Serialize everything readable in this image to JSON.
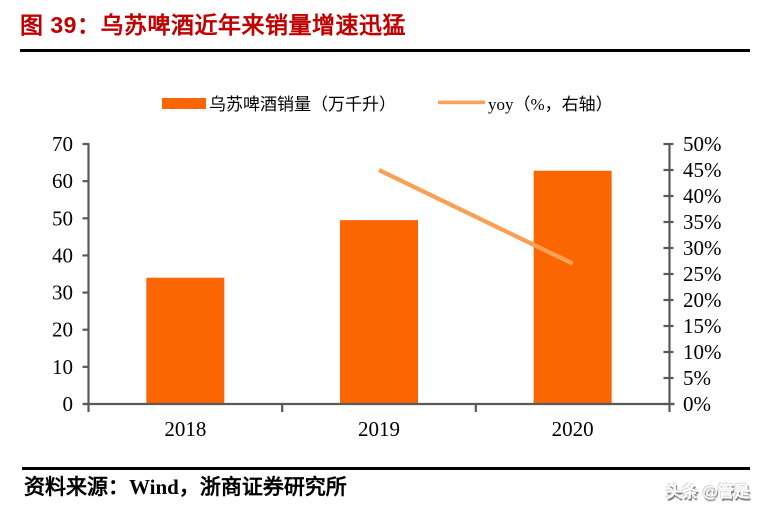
{
  "page": {
    "title": "图 39：乌苏啤酒近年来销量增速迅猛",
    "source": "资料来源：Wind，浙商证券研究所",
    "watermark": "头条 @管是"
  },
  "chart_data": {
    "type": "bar",
    "title": "图 39：乌苏啤酒近年来销量增速迅猛",
    "categories": [
      "2018",
      "2019",
      "2020"
    ],
    "series": [
      {
        "name": "乌苏啤酒销量（万千升）",
        "type": "bar",
        "axis": "left",
        "color": "#FB6602",
        "values": [
          34,
          49.5,
          62.8
        ]
      },
      {
        "name": "yoy（%，右轴）",
        "type": "line",
        "axis": "right",
        "color": "#F9A057",
        "values": [
          null,
          45,
          27
        ]
      }
    ],
    "left_axis": {
      "min": 0,
      "max": 70,
      "step": 10,
      "tick_labels": [
        "0",
        "10",
        "20",
        "30",
        "40",
        "50",
        "60",
        "70"
      ]
    },
    "right_axis": {
      "min": 0,
      "max": 50,
      "step": 5,
      "tick_labels": [
        "0%",
        "5%",
        "10%",
        "15%",
        "20%",
        "25%",
        "30%",
        "35%",
        "40%",
        "45%",
        "50%"
      ]
    },
    "legend_position": "top",
    "grid": false,
    "axis_color": "#595959",
    "label_color": "#000000"
  }
}
